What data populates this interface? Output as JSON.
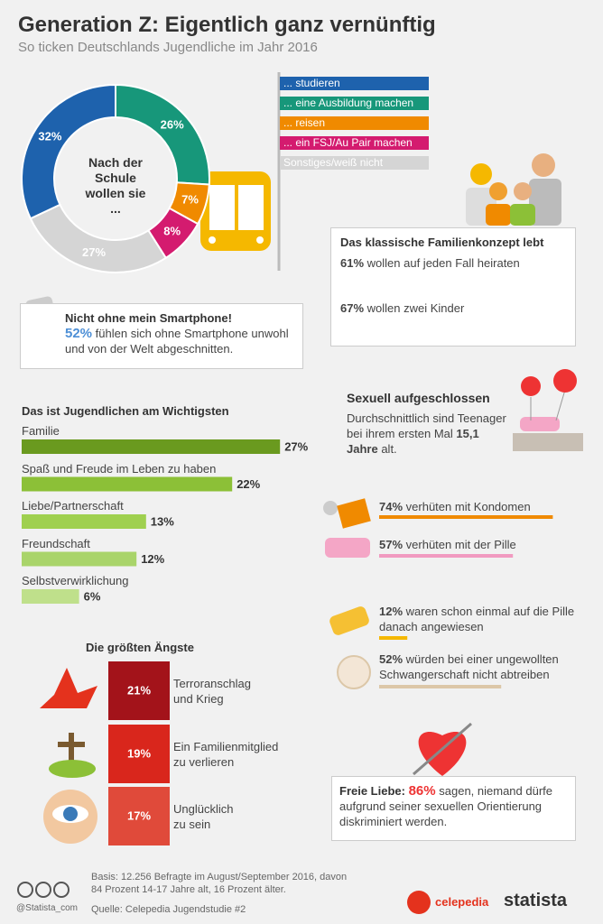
{
  "header": {
    "title": "Generation Z: Eigentlich ganz vernünftig",
    "subtitle": "So ticken Deutschlands Jugendliche im Jahr 2016"
  },
  "chart_data": [
    {
      "type": "donut",
      "center_label": "Nach der Schule wollen sie ...",
      "categories": [
        "... studieren",
        "... eine Ausbildung machen",
        "... reisen",
        "... ein FSJ/Au Pair machen",
        "Sonstiges/weiß nicht"
      ],
      "values": [
        32,
        26,
        7,
        8,
        27
      ],
      "value_labels": [
        "32%",
        "26%",
        "7%",
        "8%",
        "27%"
      ],
      "colors": [
        "#1e62ad",
        "#17977a",
        "#f08a00",
        "#d41b6f",
        "#d5d5d5"
      ]
    },
    {
      "type": "track-bar",
      "title": "Das klassische Familienkonzept lebt",
      "categories": [
        "wollen auf jeden Fall heiraten",
        "wollen zwei Kinder"
      ],
      "values": [
        61,
        67
      ],
      "value_labels": [
        "61%",
        "67%"
      ],
      "xlim": [
        0,
        100
      ],
      "colors": [
        "#7aaee8",
        "#2f6fd3"
      ],
      "track_color": "#d9d9d9"
    },
    {
      "type": "bar",
      "title": "Das ist Jugendlichen am Wichtigsten",
      "categories": [
        "Familie",
        "Spaß und Freude im Leben zu haben",
        "Liebe/Partnerschaft",
        "Freundschaft",
        "Selbstverwirklichung"
      ],
      "values": [
        27,
        22,
        13,
        12,
        6
      ],
      "value_labels": [
        "27%",
        "22%",
        "13%",
        "12%",
        "6%"
      ],
      "colors": [
        "#6a9a1f",
        "#8cc037",
        "#9fd04f",
        "#a9d46a",
        "#bfe08b"
      ]
    },
    {
      "type": "square",
      "title": "Die größten Ängste",
      "categories": [
        "Terroranschlag und Krieg",
        "Ein Familienmitglied zu verlieren",
        "Unglücklich zu sein"
      ],
      "values": [
        21,
        19,
        17
      ],
      "value_labels": [
        "21%",
        "19%",
        "17%"
      ],
      "colors": [
        "#a3131a",
        "#d9261c",
        "#e04a3a"
      ]
    },
    {
      "type": "line",
      "categories": [
        "verhüten mit Kondomen",
        "verhüten mit der Pille",
        "waren schon einmal auf die Pille danach angewiesen",
        "würden bei einer ungewollten Schwangerschaft nicht abtreiben"
      ],
      "values": [
        74,
        57,
        12,
        52
      ],
      "value_labels": [
        "74%",
        "57%",
        "12%",
        "52%"
      ],
      "colors": [
        "#f08a00",
        "#f19ac0",
        "#f5b800",
        "#dcc7a8"
      ]
    }
  ],
  "smartphone": {
    "title": "Nicht ohne mein Smartphone!",
    "value_label": "52%",
    "text": "fühlen sich ohne Smartphone unwohl und von der Welt abgeschnitten."
  },
  "sexuell": {
    "title": "Sexuell aufgeschlossen",
    "text_before": "Durchschnittlich sind Teenager bei ihrem ersten Mal",
    "age": "15,1 Jahre",
    "text_after": "alt."
  },
  "freie_liebe": {
    "label": "Freie Liebe:",
    "value_label": "86%",
    "text": "sagen, niemand dürfe aufgrund seiner sexuellen Orientierung diskriminiert werden."
  },
  "footer": {
    "basis": "Basis: 12.256 Befragte im August/September 2016, davon 84 Prozent 14-17 Jahre alt, 16 Prozent älter.",
    "quelle": "Quelle: Celepedia Jugendstudie #2",
    "handle": "@Statista_com",
    "logo_left": "celepedia",
    "logo_right": "statista"
  }
}
